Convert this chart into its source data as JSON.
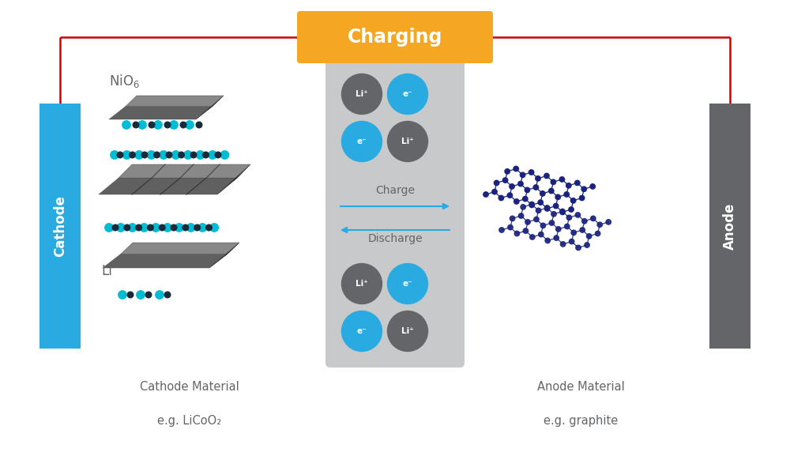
{
  "bg_color": "#ffffff",
  "cathode_color": "#29ABE2",
  "anode_color": "#636569",
  "electrolyte_color": "#C8C9CA",
  "charging_box_color": "#F5A623",
  "charging_text": "Charging",
  "charging_text_color": "#ffffff",
  "cathode_label": "Cathode",
  "anode_label": "Anode",
  "cathode_material_line1": "Cathode Material",
  "cathode_material_line2": "e.g. LiCoO₂",
  "anode_material_line1": "Anode Material",
  "anode_material_line2": "e.g. graphite",
  "nio6_label": "NiO",
  "li_label": "Li",
  "charge_label": "Charge",
  "discharge_label": "Discharge",
  "li_plus_color": "#636569",
  "e_minus_color": "#29ABE2",
  "wire_color": "#CC0000",
  "arrow_color": "#29ABE2",
  "text_color": "#636569",
  "layer_color": "#555555",
  "teal_color": "#00BCD4",
  "dark_dot_color": "#1a2a3a",
  "graphite_node_color": "#1a237e",
  "graphite_bond_color": "#1a237e"
}
